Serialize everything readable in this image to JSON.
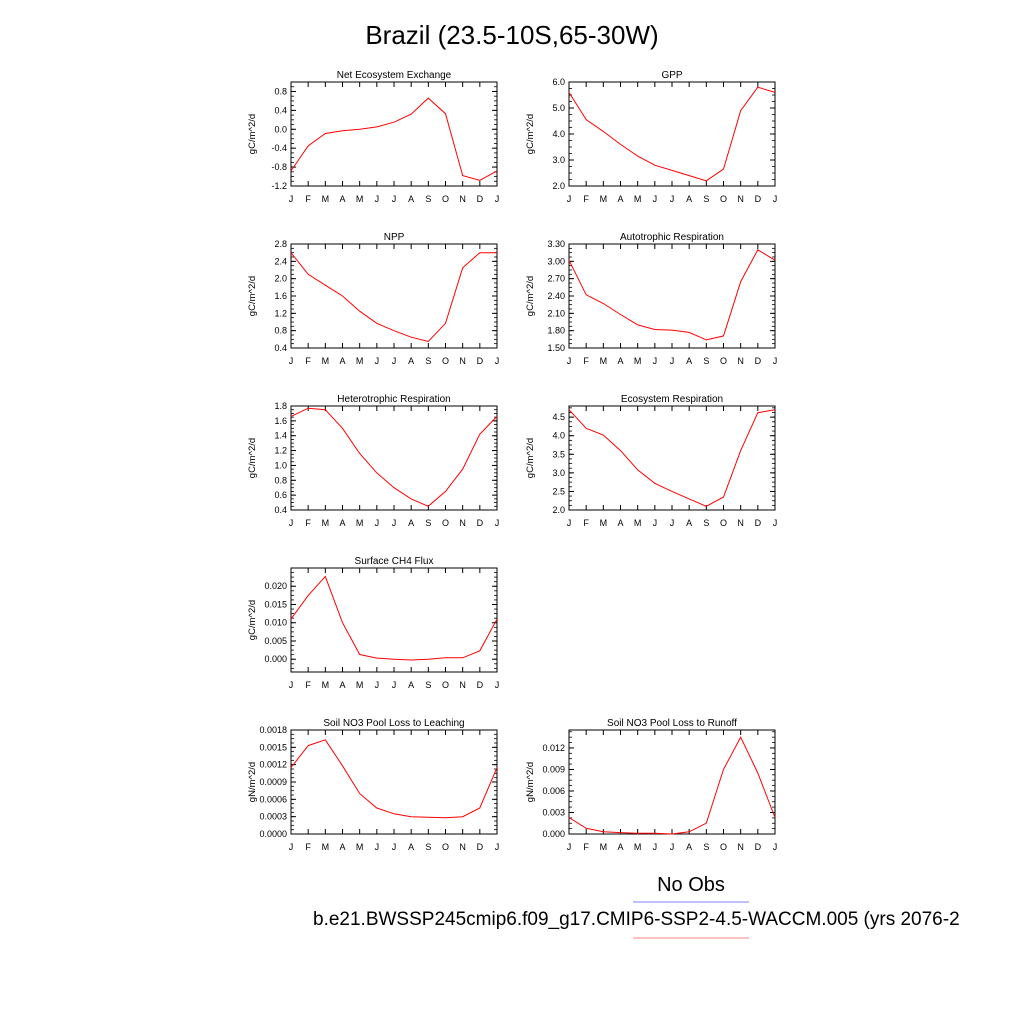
{
  "figure": {
    "title": "Brazil (23.5-10S,65-30W)",
    "legend": [
      {
        "label": "No Obs",
        "color": "#8080ff"
      },
      {
        "label": "b.e21.BWSSP245cmip6.f09_g17.CMIP6-SSP2-4.5-WACCM.005 (yrs 2076-2",
        "color": "#ff8080"
      }
    ],
    "line_color": "#ff0000"
  },
  "chart_data": [
    {
      "type": "line",
      "title": "Net Ecosystem Exchange",
      "ylabel": "gC/m^2/d",
      "categories": [
        "J",
        "F",
        "M",
        "A",
        "M",
        "J",
        "J",
        "A",
        "S",
        "O",
        "N",
        "D",
        "J"
      ],
      "values": [
        -0.88,
        -0.35,
        -0.09,
        -0.03,
        0.0,
        0.05,
        0.15,
        0.32,
        0.66,
        0.33,
        -0.98,
        -1.08,
        -0.88
      ],
      "ylim": [
        -1.2,
        1.0
      ],
      "yticks": [
        "-1.2",
        "-0.8",
        "-0.4",
        "0.0",
        "0.4",
        "0.8"
      ],
      "yticks_val": [
        -1.2,
        -0.8,
        -0.4,
        0.0,
        0.4,
        0.8
      ]
    },
    {
      "type": "line",
      "title": "GPP",
      "ylabel": "gC/m^2/d",
      "categories": [
        "J",
        "F",
        "M",
        "A",
        "M",
        "J",
        "J",
        "A",
        "S",
        "O",
        "N",
        "D",
        "J"
      ],
      "values": [
        5.6,
        4.55,
        4.1,
        3.6,
        3.15,
        2.8,
        2.6,
        2.4,
        2.2,
        2.65,
        4.9,
        5.8,
        5.6
      ],
      "ylim": [
        2.0,
        6.0
      ],
      "yticks": [
        "2.0",
        "3.0",
        "4.0",
        "5.0",
        "6.0"
      ],
      "yticks_val": [
        2.0,
        3.0,
        4.0,
        5.0,
        6.0
      ]
    },
    {
      "type": "line",
      "title": "NPP",
      "ylabel": "gC/m^2/d",
      "categories": [
        "J",
        "F",
        "M",
        "A",
        "M",
        "J",
        "J",
        "A",
        "S",
        "O",
        "N",
        "D",
        "J"
      ],
      "values": [
        2.6,
        2.1,
        1.85,
        1.6,
        1.25,
        0.97,
        0.8,
        0.65,
        0.55,
        0.97,
        2.25,
        2.6,
        2.6
      ],
      "ylim": [
        0.4,
        2.8
      ],
      "yticks": [
        "0.4",
        "0.8",
        "1.2",
        "1.6",
        "2.0",
        "2.4",
        "2.8"
      ],
      "yticks_val": [
        0.4,
        0.8,
        1.2,
        1.6,
        2.0,
        2.4,
        2.8
      ]
    },
    {
      "type": "line",
      "title": "Autotrophic Respiration",
      "ylabel": "gC/m^2/d",
      "categories": [
        "J",
        "F",
        "M",
        "A",
        "M",
        "J",
        "J",
        "A",
        "S",
        "O",
        "N",
        "D",
        "J"
      ],
      "values": [
        3.02,
        2.42,
        2.27,
        2.08,
        1.9,
        1.82,
        1.81,
        1.77,
        1.64,
        1.71,
        2.65,
        3.2,
        3.02
      ],
      "ylim": [
        1.5,
        3.3
      ],
      "yticks": [
        "1.50",
        "1.80",
        "2.10",
        "2.40",
        "2.70",
        "3.00",
        "3.30"
      ],
      "yticks_val": [
        1.5,
        1.8,
        2.1,
        2.4,
        2.7,
        3.0,
        3.3
      ]
    },
    {
      "type": "line",
      "title": "Heterotrophic Respiration",
      "ylabel": "gC/m^2/d",
      "categories": [
        "J",
        "F",
        "M",
        "A",
        "M",
        "J",
        "J",
        "A",
        "S",
        "O",
        "N",
        "D",
        "J"
      ],
      "values": [
        1.66,
        1.77,
        1.75,
        1.5,
        1.16,
        0.9,
        0.7,
        0.55,
        0.45,
        0.65,
        0.95,
        1.42,
        1.66
      ],
      "ylim": [
        0.4,
        1.8
      ],
      "yticks": [
        "0.4",
        "0.6",
        "0.8",
        "1.0",
        "1.2",
        "1.4",
        "1.6",
        "1.8"
      ],
      "yticks_val": [
        0.4,
        0.6,
        0.8,
        1.0,
        1.2,
        1.4,
        1.6,
        1.8
      ]
    },
    {
      "type": "line",
      "title": "Ecosystem Respiration",
      "ylabel": "gC/m^2/d",
      "categories": [
        "J",
        "F",
        "M",
        "A",
        "M",
        "J",
        "J",
        "A",
        "S",
        "O",
        "N",
        "D",
        "J"
      ],
      "values": [
        4.7,
        4.2,
        4.02,
        3.6,
        3.08,
        2.72,
        2.5,
        2.3,
        2.1,
        2.35,
        3.6,
        4.62,
        4.7
      ],
      "ylim": [
        2.0,
        4.8
      ],
      "yticks": [
        "2.0",
        "2.5",
        "3.0",
        "3.5",
        "4.0",
        "4.5"
      ],
      "yticks_val": [
        2.0,
        2.5,
        3.0,
        3.5,
        4.0,
        4.5
      ]
    },
    {
      "type": "line",
      "title": "Surface CH4 Flux",
      "ylabel": "gC/m^2/d",
      "categories": [
        "J",
        "F",
        "M",
        "A",
        "M",
        "J",
        "J",
        "A",
        "S",
        "O",
        "N",
        "D",
        "J"
      ],
      "values": [
        0.011,
        0.0175,
        0.0227,
        0.01,
        0.0013,
        0.0003,
        0.0,
        -0.0002,
        0.0,
        0.0004,
        0.0004,
        0.0023,
        0.011
      ],
      "ylim": [
        -0.0035,
        0.025
      ],
      "yticks": [
        "0.000",
        "0.005",
        "0.010",
        "0.015",
        "0.020"
      ],
      "yticks_val": [
        0.0,
        0.005,
        0.01,
        0.015,
        0.02
      ]
    },
    {
      "type": "line",
      "title": "Soil NO3 Pool Loss to Leaching",
      "ylabel": "gN/m^2/d",
      "categories": [
        "J",
        "F",
        "M",
        "A",
        "M",
        "J",
        "J",
        "A",
        "S",
        "O",
        "N",
        "D",
        "J"
      ],
      "values": [
        0.00115,
        0.00153,
        0.00163,
        0.00118,
        0.0007,
        0.00045,
        0.00035,
        0.0003,
        0.00029,
        0.00028,
        0.0003,
        0.00045,
        0.00115
      ],
      "ylim": [
        0.0,
        0.0018
      ],
      "yticks": [
        "0.0000",
        "0.0003",
        "0.0006",
        "0.0009",
        "0.0012",
        "0.0015",
        "0.0018"
      ],
      "yticks_val": [
        0.0,
        0.0003,
        0.0006,
        0.0009,
        0.0012,
        0.0015,
        0.0018
      ]
    },
    {
      "type": "line",
      "title": "Soil NO3 Pool Loss to Runoff",
      "ylabel": "gN/m^2/d",
      "categories": [
        "J",
        "F",
        "M",
        "A",
        "M",
        "J",
        "J",
        "A",
        "S",
        "O",
        "N",
        "D",
        "J"
      ],
      "values": [
        0.0023,
        0.0008,
        0.0003,
        0.0002,
        0.0001,
        0.0001,
        0.0,
        0.0003,
        0.0015,
        0.009,
        0.0135,
        0.0085,
        0.0023
      ],
      "ylim": [
        0.0,
        0.0145
      ],
      "yticks": [
        "0.000",
        "0.003",
        "0.006",
        "0.009",
        "0.012"
      ],
      "yticks_val": [
        0.0,
        0.003,
        0.006,
        0.009,
        0.012
      ]
    }
  ]
}
